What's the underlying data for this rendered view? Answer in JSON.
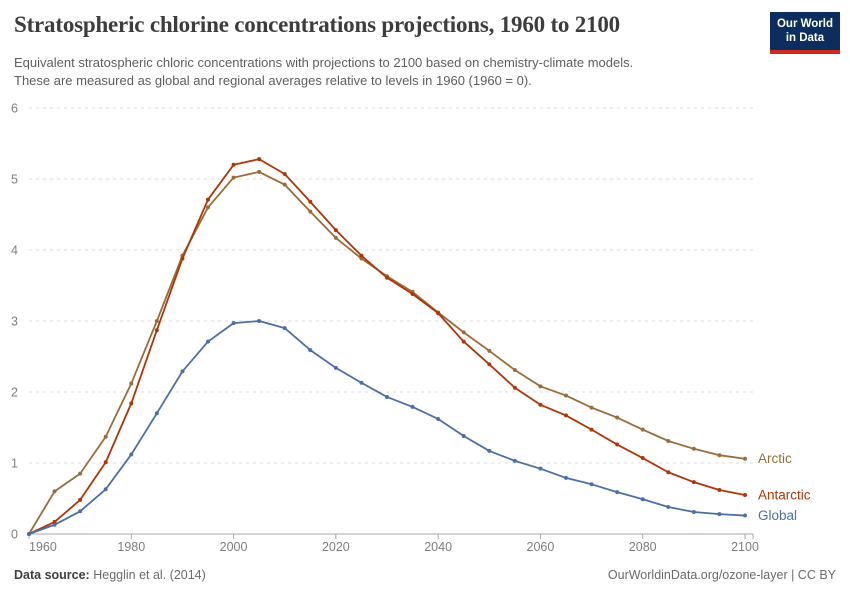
{
  "header": {
    "title": "Stratospheric chlorine concentrations projections, 1960 to 2100",
    "subtitle": [
      "Equivalent stratospheric chloric concentrations with projections to 2100 based on chemistry-climate models.",
      "These are measured as global and regional averages relative to levels in 1960 (1960 = 0)."
    ],
    "logo": {
      "line1": "Our World",
      "line2": "in Data",
      "bg_color": "#0c2e5e",
      "accent_color": "#d0281e"
    }
  },
  "chart_data": {
    "type": "line",
    "title": "Stratospheric chlorine concentrations projections, 1960 to 2100",
    "xlabel": "",
    "ylabel": "",
    "ylim": [
      0,
      6
    ],
    "yticks": [
      0,
      1,
      2,
      3,
      4,
      5,
      6
    ],
    "xticks": [
      1960,
      1980,
      2000,
      2020,
      2040,
      2060,
      2080,
      2100
    ],
    "grid": "horizontal dashed",
    "legend_position": "end-of-line labels",
    "x": [
      1960,
      1965,
      1970,
      1975,
      1980,
      1985,
      1990,
      1995,
      2000,
      2005,
      2010,
      2015,
      2020,
      2025,
      2030,
      2035,
      2040,
      2045,
      2050,
      2055,
      2060,
      2065,
      2070,
      2075,
      2080,
      2085,
      2090,
      2095,
      2100
    ],
    "series": [
      {
        "name": "Arctic",
        "color": "#996D39",
        "values": [
          0,
          0.6,
          0.85,
          1.37,
          2.12,
          3.0,
          3.92,
          4.6,
          5.02,
          5.1,
          4.92,
          4.54,
          4.17,
          3.88,
          3.63,
          3.41,
          3.12,
          2.84,
          2.58,
          2.31,
          2.08,
          1.95,
          1.78,
          1.64,
          1.47,
          1.31,
          1.2,
          1.11,
          1.06
        ]
      },
      {
        "name": "Antarctic",
        "color": "#B13507",
        "values": [
          0,
          0.17,
          0.48,
          1.01,
          1.84,
          2.87,
          3.88,
          4.71,
          5.2,
          5.28,
          5.07,
          4.68,
          4.28,
          3.92,
          3.61,
          3.38,
          3.11,
          2.71,
          2.39,
          2.06,
          1.82,
          1.67,
          1.47,
          1.26,
          1.07,
          0.87,
          0.73,
          0.62,
          0.55
        ]
      },
      {
        "name": "Global",
        "color": "#4C6FA5",
        "values": [
          0,
          0.13,
          0.32,
          0.63,
          1.12,
          1.7,
          2.29,
          2.71,
          2.97,
          3.0,
          2.9,
          2.59,
          2.34,
          2.13,
          1.93,
          1.79,
          1.62,
          1.38,
          1.17,
          1.03,
          0.92,
          0.79,
          0.7,
          0.59,
          0.49,
          0.38,
          0.31,
          0.28,
          0.26
        ]
      }
    ],
    "style": {
      "grid_color": "#dcdcdc",
      "axis_color": "#a9a9a9",
      "tick_text_color": "#7e7e7e"
    }
  },
  "footer": {
    "source_label": "Data source:",
    "source_value": "Hegglin et al. (2014)",
    "credit": "OurWorldinData.org/ozone-layer | CC BY"
  }
}
